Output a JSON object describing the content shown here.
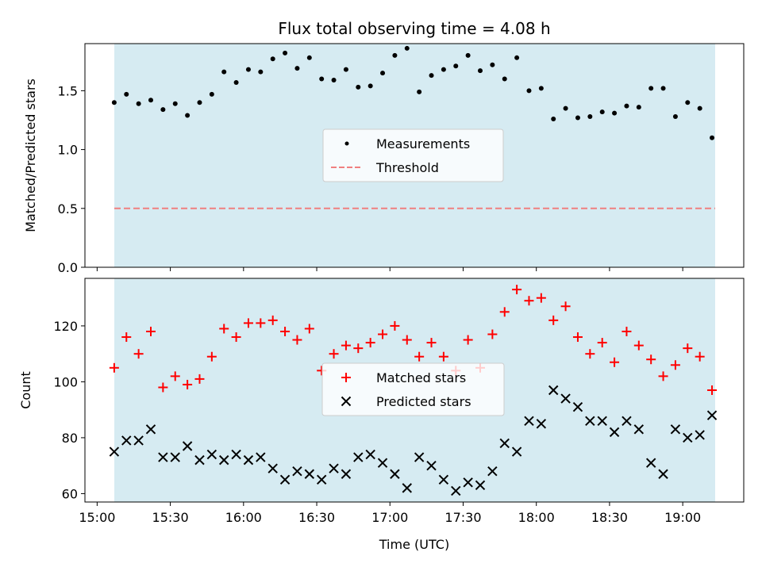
{
  "chart_data": [
    {
      "type": "scatter",
      "title": "Flux total observing time = 4.08 h",
      "xlabel": "",
      "ylabel": "Matched/Predicted stars",
      "ylim": [
        0,
        1.9
      ],
      "yticks": [
        0.0,
        0.5,
        1.0,
        1.5
      ],
      "ytick_labels": [
        "0.0",
        "0.5",
        "1.0",
        "1.5"
      ],
      "xlim_minutes": [
        895,
        1165
      ],
      "legend_position": "center",
      "observing_window_color": "#add8e6",
      "threshold": 0.5,
      "x": [
        "15:07",
        "15:12",
        "15:17",
        "15:22",
        "15:27",
        "15:32",
        "15:37",
        "15:42",
        "15:47",
        "15:52",
        "15:57",
        "16:02",
        "16:07",
        "16:12",
        "16:17",
        "16:22",
        "16:27",
        "16:32",
        "16:37",
        "16:42",
        "16:47",
        "16:52",
        "16:57",
        "17:02",
        "17:07",
        "17:12",
        "17:17",
        "17:22",
        "17:27",
        "17:32",
        "17:37",
        "17:42",
        "17:47",
        "17:52",
        "17:57",
        "18:02",
        "18:07",
        "18:12",
        "18:17",
        "18:22",
        "18:27",
        "18:32",
        "18:37",
        "18:42",
        "18:47",
        "18:52",
        "18:57",
        "19:02",
        "19:07",
        "19:12"
      ],
      "series": [
        {
          "name": "Measurements",
          "marker": "dot",
          "color": "#000000",
          "values": [
            1.4,
            1.47,
            1.39,
            1.42,
            1.34,
            1.39,
            1.29,
            1.4,
            1.47,
            1.66,
            1.57,
            1.68,
            1.66,
            1.77,
            1.82,
            1.69,
            1.78,
            1.6,
            1.59,
            1.68,
            1.53,
            1.54,
            1.65,
            1.8,
            1.86,
            1.49,
            1.63,
            1.68,
            1.71,
            1.8,
            1.67,
            1.72,
            1.6,
            1.78,
            1.5,
            1.52,
            1.26,
            1.35,
            1.27,
            1.28,
            1.32,
            1.31,
            1.37,
            1.36,
            1.52,
            1.52,
            1.28,
            1.4,
            1.35,
            1.1
          ]
        },
        {
          "name": "Threshold",
          "marker": "dashed-line",
          "color": "#f08080",
          "values": [
            0.5,
            0.5
          ]
        }
      ]
    },
    {
      "type": "scatter",
      "title": "",
      "xlabel": "Time (UTC)",
      "ylabel": "Count",
      "ylim": [
        57,
        137
      ],
      "yticks": [
        60,
        80,
        100,
        120
      ],
      "ytick_labels": [
        "60",
        "80",
        "100",
        "120"
      ],
      "xlim_minutes": [
        895,
        1165
      ],
      "xticks": [
        "15:00",
        "15:30",
        "16:00",
        "16:30",
        "17:00",
        "17:30",
        "18:00",
        "18:30",
        "19:00"
      ],
      "legend_position": "center",
      "observing_window_color": "#add8e6",
      "x": [
        "15:07",
        "15:12",
        "15:17",
        "15:22",
        "15:27",
        "15:32",
        "15:37",
        "15:42",
        "15:47",
        "15:52",
        "15:57",
        "16:02",
        "16:07",
        "16:12",
        "16:17",
        "16:22",
        "16:27",
        "16:32",
        "16:37",
        "16:42",
        "16:47",
        "16:52",
        "16:57",
        "17:02",
        "17:07",
        "17:12",
        "17:17",
        "17:22",
        "17:27",
        "17:32",
        "17:37",
        "17:42",
        "17:47",
        "17:52",
        "17:57",
        "18:02",
        "18:07",
        "18:12",
        "18:17",
        "18:22",
        "18:27",
        "18:32",
        "18:37",
        "18:42",
        "18:47",
        "18:52",
        "18:57",
        "19:02",
        "19:07",
        "19:12"
      ],
      "series": [
        {
          "name": "Matched stars",
          "marker": "plus",
          "color": "#ff0000",
          "values": [
            105,
            116,
            110,
            118,
            98,
            102,
            99,
            101,
            109,
            119,
            116,
            121,
            121,
            122,
            118,
            115,
            119,
            104,
            110,
            113,
            112,
            114,
            117,
            120,
            115,
            109,
            114,
            109,
            104,
            115,
            105,
            117,
            125,
            133,
            129,
            130,
            122,
            127,
            116,
            110,
            114,
            107,
            118,
            113,
            108,
            102,
            106,
            112,
            109,
            97
          ]
        },
        {
          "name": "Predicted stars",
          "marker": "x",
          "color": "#000000",
          "values": [
            75,
            79,
            79,
            83,
            73,
            73,
            77,
            72,
            74,
            72,
            74,
            72,
            73,
            69,
            65,
            68,
            67,
            65,
            69,
            67,
            73,
            74,
            71,
            67,
            62,
            73,
            70,
            65,
            61,
            64,
            63,
            68,
            78,
            75,
            86,
            85,
            97,
            94,
            91,
            86,
            86,
            82,
            86,
            83,
            71,
            67,
            83,
            80,
            81,
            88
          ]
        }
      ]
    }
  ]
}
